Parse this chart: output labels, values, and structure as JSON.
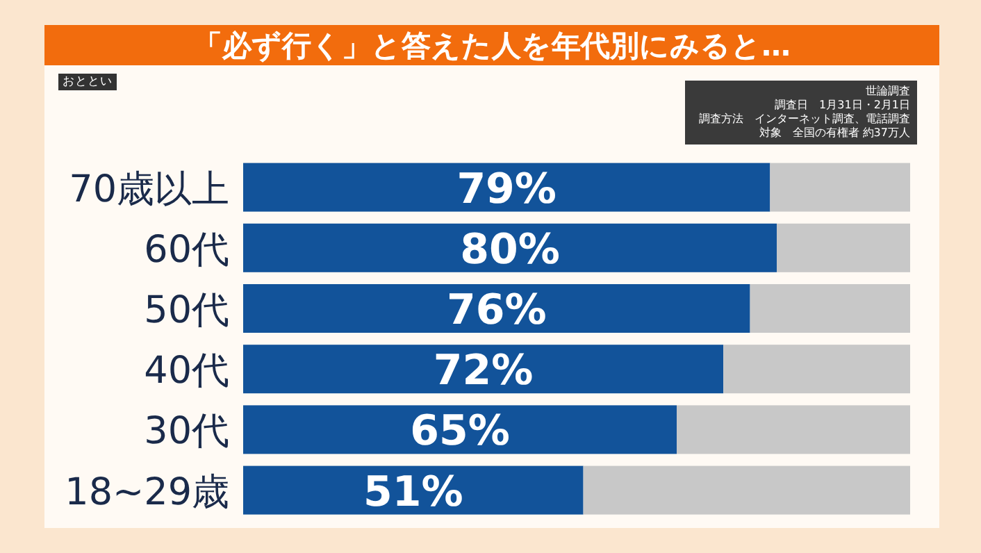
{
  "chart_data": {
    "type": "bar",
    "orientation": "horizontal",
    "stacked": true,
    "title": "「必ず行く」と答えた人を年代別にみると…",
    "categories": [
      "70歳以上",
      "60代",
      "50代",
      "40代",
      "30代",
      "18~29歳"
    ],
    "xlim": [
      0,
      100
    ],
    "tick_labels": "y",
    "series": [
      {
        "color": "#12539a",
        "values": [
          79,
          80,
          76,
          72,
          65,
          51
        ],
        "value_labels": [
          "79%",
          "80%",
          "76%",
          "72%",
          "65%",
          "51%"
        ]
      },
      {
        "color": "#c8c8c8",
        "values": [
          21,
          20,
          24,
          28,
          35,
          49
        ]
      }
    ],
    "annotations": [
      "おととい",
      "世論調査",
      "調査日　1月31日・2月1日",
      "調査方法　インターネット調査、電話調査",
      "対象　全国の有権者 約37万人"
    ]
  }
}
